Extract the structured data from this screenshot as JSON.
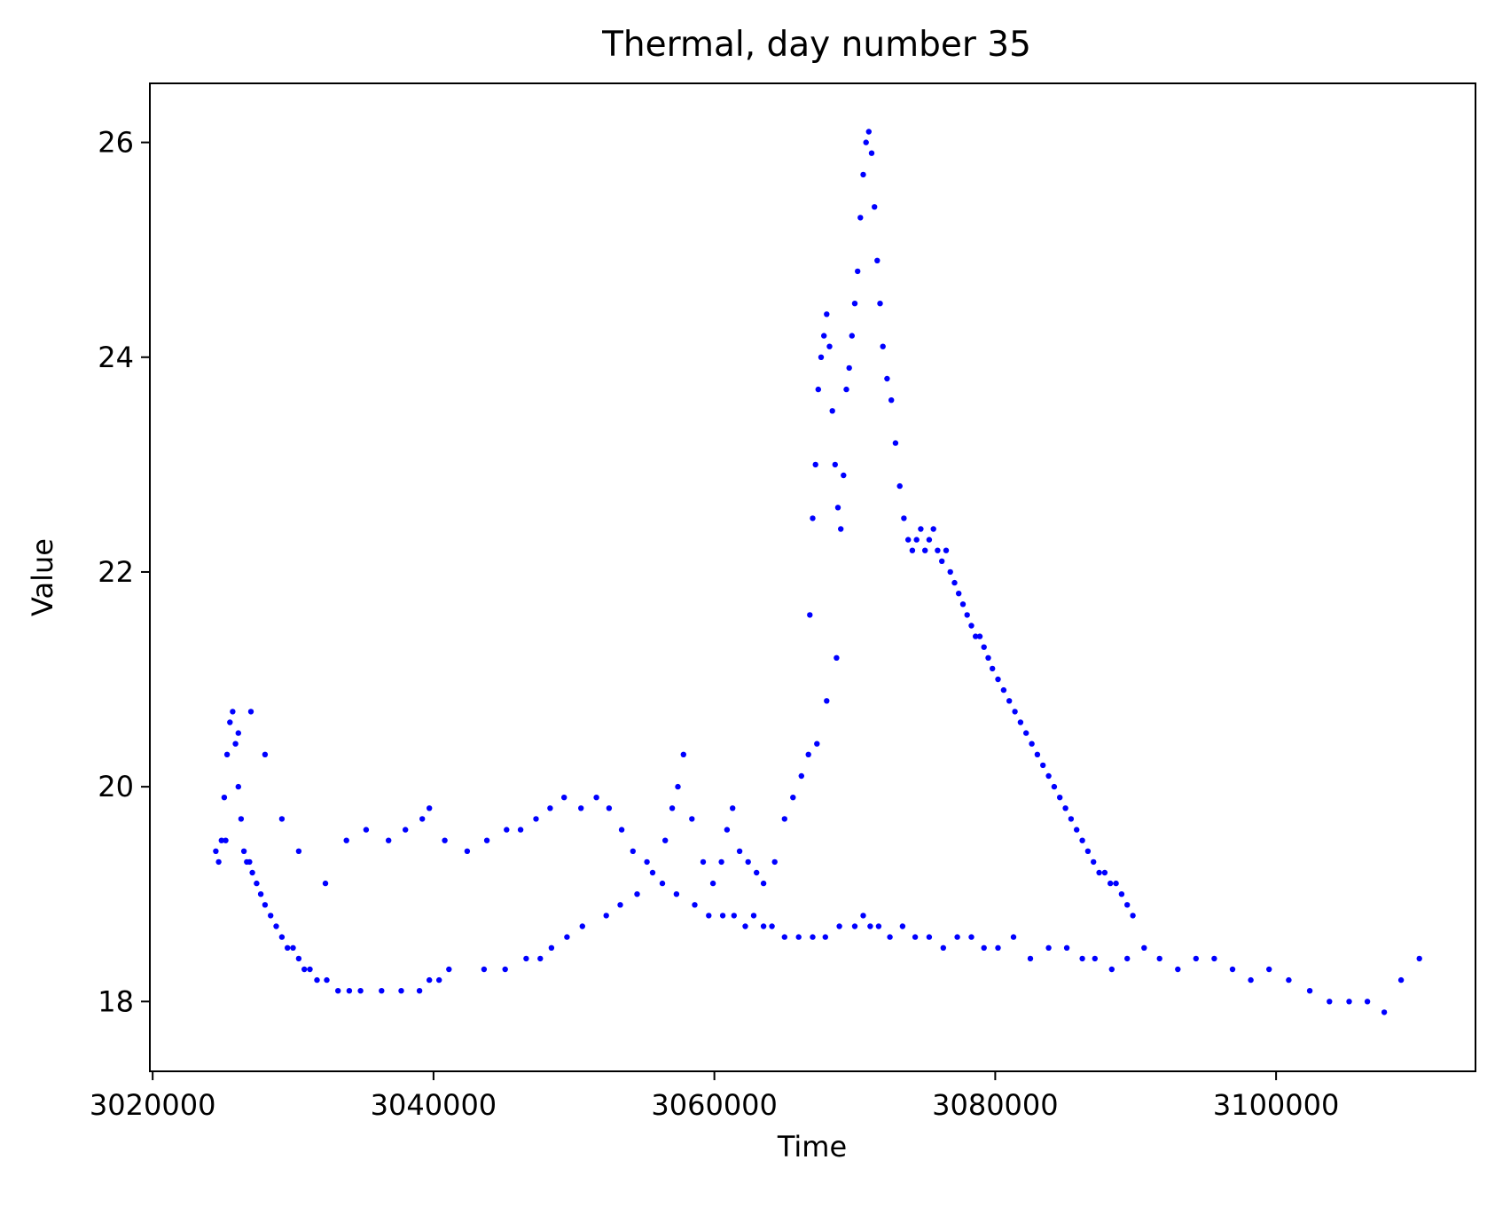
{
  "chart_data": {
    "type": "scatter",
    "title": "Thermal, day number 35",
    "xlabel": "Time",
    "ylabel": "Value",
    "xlim": [
      3019800,
      3114200
    ],
    "ylim": [
      17.35,
      26.55
    ],
    "xticks": [
      3020000,
      3040000,
      3060000,
      3080000,
      3100000
    ],
    "xtick_labels": [
      "3020000",
      "3040000",
      "3060000",
      "3080000",
      "3100000"
    ],
    "yticks": [
      18,
      20,
      22,
      24,
      26
    ],
    "ytick_labels": [
      "18",
      "20",
      "22",
      "24",
      "26"
    ],
    "grid": false,
    "marker_color": "#0000ff",
    "series": [
      {
        "x": [
          3024500,
          3024700,
          3024900,
          3025100,
          3025300,
          3025500,
          3025700,
          3025900,
          3026100,
          3026300,
          3026500,
          3026700,
          3026900,
          3027100,
          3027400,
          3027700,
          3028000,
          3028400,
          3028800,
          3029200,
          3029600,
          3030000,
          3030400,
          3030800,
          3031200,
          3031700,
          3032400,
          3033200,
          3034000,
          3034800,
          3036300,
          3037700,
          3039000,
          3039700,
          3040400,
          3041100,
          3043600,
          3045100,
          3046600,
          3047600,
          3048400,
          3049500,
          3050600,
          3052300,
          3053300,
          3054500,
          3055600,
          3056500,
          3057000,
          3057400,
          3057800,
          3058400,
          3059200,
          3059900,
          3060500,
          3060900,
          3061300,
          3061800,
          3062400,
          3063000,
          3063500,
          3064300,
          3065000,
          3065600,
          3066200,
          3066700,
          3067300,
          3068000,
          3068700
        ],
        "y": [
          19.4,
          19.3,
          19.5,
          19.9,
          20.3,
          20.6,
          20.7,
          20.4,
          20.0,
          19.7,
          19.4,
          19.3,
          19.3,
          19.2,
          19.1,
          19.0,
          18.9,
          18.8,
          18.7,
          18.6,
          18.5,
          18.5,
          18.4,
          18.3,
          18.3,
          18.2,
          18.2,
          18.1,
          18.1,
          18.1,
          18.1,
          18.1,
          18.1,
          18.2,
          18.2,
          18.3,
          18.3,
          18.3,
          18.4,
          18.4,
          18.5,
          18.6,
          18.7,
          18.8,
          18.9,
          19.0,
          19.2,
          19.5,
          19.8,
          20.0,
          20.3,
          19.7,
          19.3,
          19.1,
          19.3,
          19.6,
          19.8,
          19.4,
          19.3,
          19.2,
          19.1,
          19.3,
          19.7,
          19.9,
          20.1,
          20.3,
          20.4,
          20.8,
          21.2
        ]
      },
      {
        "x": [
          3025200,
          3026100,
          3027000,
          3028000,
          3029200,
          3030400,
          3032300,
          3033800,
          3035200,
          3036800,
          3038000,
          3039200,
          3039700,
          3040800,
          3042400,
          3043800,
          3045200,
          3046200,
          3047300,
          3048300,
          3049300,
          3050500,
          3051600,
          3052500,
          3053400,
          3054200,
          3055200,
          3056300,
          3057300,
          3058600,
          3059600,
          3060600,
          3061400,
          3062200,
          3062800,
          3063500,
          3064100,
          3065000,
          3066000,
          3067000,
          3067900,
          3068900,
          3070000,
          3070600,
          3071100,
          3071700,
          3072500,
          3073400,
          3074300,
          3075300,
          3076300,
          3077300,
          3078300,
          3079200,
          3080200,
          3081300,
          3082500,
          3083800,
          3085100,
          3086200,
          3087100,
          3088300,
          3089400,
          3090600,
          3091700,
          3093000,
          3094300,
          3095600,
          3096900,
          3098200,
          3099500,
          3100900,
          3102400,
          3103800,
          3105200,
          3106500,
          3107700,
          3108900,
          3110200
        ],
        "y": [
          19.5,
          20.5,
          20.7,
          20.3,
          19.7,
          19.4,
          19.1,
          19.5,
          19.6,
          19.5,
          19.6,
          19.7,
          19.8,
          19.5,
          19.4,
          19.5,
          19.6,
          19.6,
          19.7,
          19.8,
          19.9,
          19.8,
          19.9,
          19.8,
          19.6,
          19.4,
          19.3,
          19.1,
          19.0,
          18.9,
          18.8,
          18.8,
          18.8,
          18.7,
          18.8,
          18.7,
          18.7,
          18.6,
          18.6,
          18.6,
          18.6,
          18.7,
          18.7,
          18.8,
          18.7,
          18.7,
          18.6,
          18.7,
          18.6,
          18.6,
          18.5,
          18.6,
          18.6,
          18.5,
          18.5,
          18.6,
          18.4,
          18.5,
          18.5,
          18.4,
          18.4,
          18.3,
          18.4,
          18.5,
          18.4,
          18.3,
          18.4,
          18.4,
          18.3,
          18.2,
          18.3,
          18.2,
          18.1,
          18.0,
          18.0,
          18.0,
          17.9,
          18.2,
          18.4
        ]
      },
      {
        "x": [
          3066800,
          3067000,
          3067200,
          3067400,
          3067600,
          3067800,
          3068000,
          3068200,
          3068400,
          3068600,
          3068800,
          3069000,
          3069200,
          3069400,
          3069600,
          3069800,
          3070000,
          3070200,
          3070400,
          3070600,
          3070800,
          3071000,
          3071200,
          3071400,
          3071600,
          3071800,
          3072000,
          3072300,
          3072600,
          3072900,
          3073200,
          3073500,
          3073800,
          3074100,
          3074400,
          3074700,
          3075000,
          3075300,
          3075600,
          3075900,
          3076200,
          3076500,
          3076800,
          3077100,
          3077400,
          3077700,
          3078000,
          3078300,
          3078600,
          3078900,
          3079200,
          3079500,
          3079800,
          3080200,
          3080600,
          3081000,
          3081400,
          3081800,
          3082200,
          3082600,
          3083000,
          3083400,
          3083800,
          3084200,
          3084600,
          3085000,
          3085400,
          3085800,
          3086200,
          3086600,
          3087000,
          3087400,
          3087800,
          3088200,
          3088600,
          3089000,
          3089400,
          3089800
        ],
        "y": [
          21.6,
          22.5,
          23.0,
          23.7,
          24.0,
          24.2,
          24.4,
          24.1,
          23.5,
          23.0,
          22.6,
          22.4,
          22.9,
          23.7,
          23.9,
          24.2,
          24.5,
          24.8,
          25.3,
          25.7,
          26.0,
          26.1,
          25.9,
          25.4,
          24.9,
          24.5,
          24.1,
          23.8,
          23.6,
          23.2,
          22.8,
          22.5,
          22.3,
          22.2,
          22.3,
          22.4,
          22.2,
          22.3,
          22.4,
          22.2,
          22.1,
          22.2,
          22.0,
          21.9,
          21.8,
          21.7,
          21.6,
          21.5,
          21.4,
          21.4,
          21.3,
          21.2,
          21.1,
          21.0,
          20.9,
          20.8,
          20.7,
          20.6,
          20.5,
          20.4,
          20.3,
          20.2,
          20.1,
          20.0,
          19.9,
          19.8,
          19.7,
          19.6,
          19.5,
          19.4,
          19.3,
          19.2,
          19.2,
          19.1,
          19.1,
          19.0,
          18.9,
          18.8
        ]
      }
    ]
  }
}
